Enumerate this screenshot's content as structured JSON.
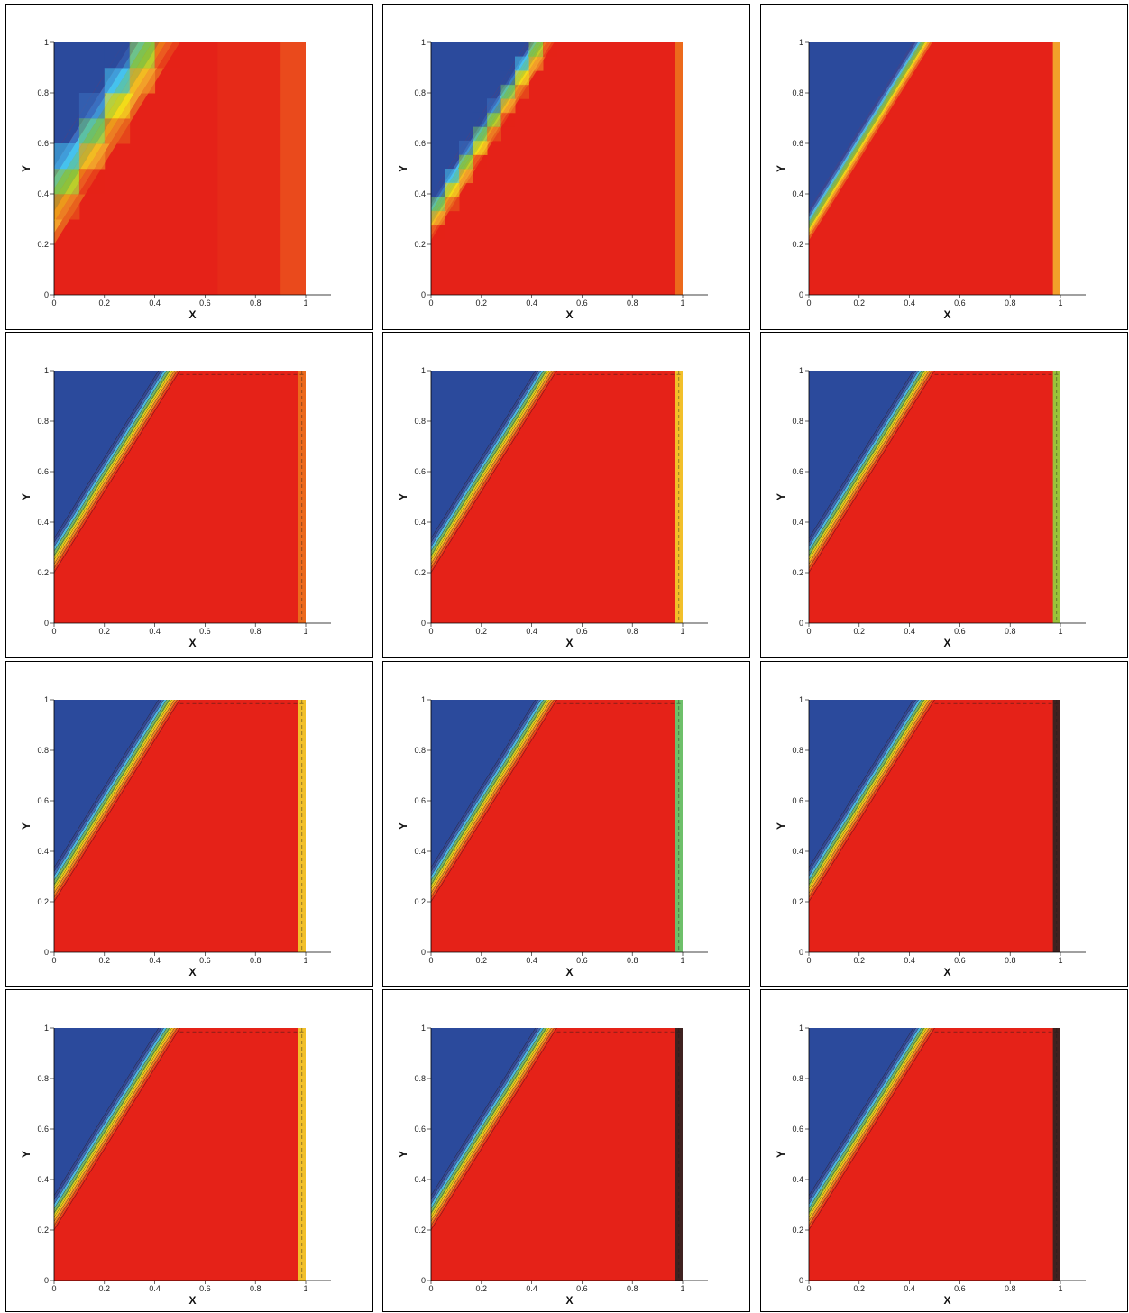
{
  "chart_data": {
    "type": "heatmap",
    "layout": "4 rows x 3 columns grid of contour plots",
    "xlabel": "X",
    "ylabel": "Y",
    "xlim": [
      0,
      1
    ],
    "ylim": [
      0,
      1
    ],
    "x_ticks": [
      "0",
      "0.2",
      "0.4",
      "0.6",
      "0.8",
      "1"
    ],
    "y_ticks": [
      "0",
      "0.2",
      "0.4",
      "0.6",
      "0.8",
      "1"
    ],
    "colors": {
      "low": "#2b4a9c",
      "high": "#e52218",
      "ramp": [
        "#2b4a9c",
        "#3a6fc0",
        "#46c2ee",
        "#6ec06a",
        "#8ec23a",
        "#f2dc1a",
        "#f2a02a",
        "#e8621e",
        "#e52218"
      ]
    },
    "panels": [
      {
        "row": 1,
        "col": 1,
        "style": "coarse",
        "levels": 8,
        "contour_lines": false,
        "right_strip_color": "#ea4a1c"
      },
      {
        "row": 1,
        "col": 2,
        "style": "medium",
        "levels": 12,
        "contour_lines": false,
        "right_strip_color": "#ec6a1c"
      },
      {
        "row": 1,
        "col": 3,
        "style": "smooth",
        "levels": 20,
        "contour_lines": false,
        "right_strip_color": "#f2a02a"
      },
      {
        "row": 2,
        "col": 1,
        "style": "smooth",
        "levels": 16,
        "contour_lines": true,
        "right_strip_color": "#ec6a1c"
      },
      {
        "row": 2,
        "col": 2,
        "style": "smooth",
        "levels": 16,
        "contour_lines": true,
        "right_strip_color": "#f2c02a"
      },
      {
        "row": 2,
        "col": 3,
        "style": "smooth",
        "levels": 16,
        "contour_lines": true,
        "right_strip_color": "#9ac23a"
      },
      {
        "row": 3,
        "col": 1,
        "style": "smooth",
        "levels": 16,
        "contour_lines": true,
        "right_strip_color": "#f2c02a"
      },
      {
        "row": 3,
        "col": 2,
        "style": "smooth",
        "levels": 16,
        "contour_lines": true,
        "right_strip_color": "#6ec06a"
      },
      {
        "row": 3,
        "col": 3,
        "style": "smooth",
        "levels": 16,
        "contour_lines": true,
        "right_strip_color": "#222222"
      },
      {
        "row": 4,
        "col": 1,
        "style": "smooth",
        "levels": 16,
        "contour_lines": true,
        "right_strip_color": "#f2c02a"
      },
      {
        "row": 4,
        "col": 2,
        "style": "smooth",
        "levels": 16,
        "contour_lines": true,
        "right_strip_color": "#222222"
      },
      {
        "row": 4,
        "col": 3,
        "style": "smooth",
        "levels": 16,
        "contour_lines": true,
        "right_strip_color": "#222222"
      }
    ]
  }
}
